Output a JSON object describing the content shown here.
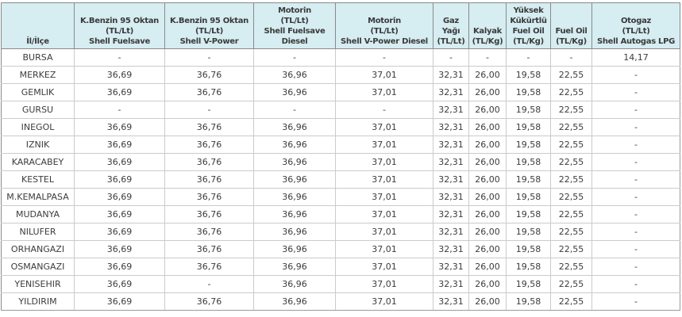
{
  "colors": {
    "header_background": "#d6edf1",
    "header_border": "#8a8a8a",
    "grid_border": "#cbcbcb",
    "text": "#3c3c3c"
  },
  "chart_data": {
    "type": "table",
    "columns": [
      "İl/İlçe",
      "K.Benzin 95 Oktan\n(TL/Lt)\nShell Fuelsave",
      "K.Benzin 95 Oktan\n(TL/Lt)\nShell V-Power",
      "Motorin\n(TL/Lt)\nShell Fuelsave\nDiesel",
      "Motorin\n(TL/Lt)\nShell V-Power Diesel",
      "Gaz\nYağı\n(TL/Lt)",
      "Kalyak\n(TL/Kg)",
      "Yüksek\nKükürtlü\nFuel Oil\n(TL/Kg)",
      "Fuel Oil\n(TL/Kg)",
      "Otogaz\n(TL/Lt)\nShell Autogas LPG"
    ],
    "rows": [
      [
        "BURSA",
        "-",
        "-",
        "-",
        "-",
        "-",
        "-",
        "-",
        "-",
        "14,17"
      ],
      [
        "MERKEZ",
        "36,69",
        "36,76",
        "36,96",
        "37,01",
        "32,31",
        "26,00",
        "19,58",
        "22,55",
        "-"
      ],
      [
        "GEMLIK",
        "36,69",
        "36,76",
        "36,96",
        "37,01",
        "32,31",
        "26,00",
        "19,58",
        "22,55",
        "-"
      ],
      [
        "GURSU",
        "-",
        "-",
        "-",
        "-",
        "32,31",
        "26,00",
        "19,58",
        "22,55",
        "-"
      ],
      [
        "INEGOL",
        "36,69",
        "36,76",
        "36,96",
        "37,01",
        "32,31",
        "26,00",
        "19,58",
        "22,55",
        "-"
      ],
      [
        "IZNIK",
        "36,69",
        "36,76",
        "36,96",
        "37,01",
        "32,31",
        "26,00",
        "19,58",
        "22,55",
        "-"
      ],
      [
        "KARACABEY",
        "36,69",
        "36,76",
        "36,96",
        "37,01",
        "32,31",
        "26,00",
        "19,58",
        "22,55",
        "-"
      ],
      [
        "KESTEL",
        "36,69",
        "36,76",
        "36,96",
        "37,01",
        "32,31",
        "26,00",
        "19,58",
        "22,55",
        "-"
      ],
      [
        "M.KEMALPASA",
        "36,69",
        "36,76",
        "36,96",
        "37,01",
        "32,31",
        "26,00",
        "19,58",
        "22,55",
        "-"
      ],
      [
        "MUDANYA",
        "36,69",
        "36,76",
        "36,96",
        "37,01",
        "32,31",
        "26,00",
        "19,58",
        "22,55",
        "-"
      ],
      [
        "NILUFER",
        "36,69",
        "36,76",
        "36,96",
        "37,01",
        "32,31",
        "26,00",
        "19,58",
        "22,55",
        "-"
      ],
      [
        "ORHANGAZI",
        "36,69",
        "36,76",
        "36,96",
        "37,01",
        "32,31",
        "26,00",
        "19,58",
        "22,55",
        "-"
      ],
      [
        "OSMANGAZI",
        "36,69",
        "36,76",
        "36,96",
        "37,01",
        "32,31",
        "26,00",
        "19,58",
        "22,55",
        "-"
      ],
      [
        "YENISEHIR",
        "36,69",
        "-",
        "36,96",
        "37,01",
        "32,31",
        "26,00",
        "19,58",
        "22,55",
        "-"
      ],
      [
        "YILDIRIM",
        "36,69",
        "36,76",
        "36,96",
        "37,01",
        "32,31",
        "26,00",
        "19,58",
        "22,55",
        "-"
      ]
    ]
  }
}
